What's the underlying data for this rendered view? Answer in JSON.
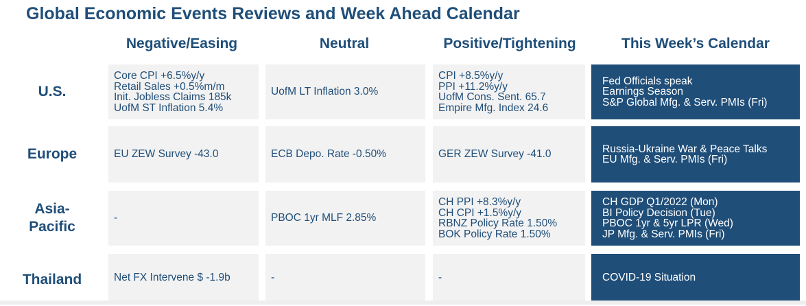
{
  "title": "Global Economic Events Reviews and Week Ahead Calendar",
  "columns": [
    "Negative/Easing",
    "Neutral",
    "Positive/Tightening",
    "This Week’s Calendar"
  ],
  "rows": [
    {
      "label": "U.S.",
      "negative": [
        "Core CPI +6.5%y/y",
        "Retail Sales +0.5%m/m",
        "Init. Jobless Claims 185k",
        "UofM ST Inflation 5.4%"
      ],
      "neutral": [
        "UofM LT Inflation 3.0%"
      ],
      "positive": [
        "CPI +8.5%y/y",
        "PPI +11.2%y/y",
        "UofM Cons. Sent. 65.7",
        "Empire Mfg. Index 24.6"
      ],
      "calendar": [
        "Fed Officials speak",
        "Earnings Season",
        "S&P Global Mfg. & Serv. PMIs (Fri)"
      ]
    },
    {
      "label": "Europe",
      "negative": [
        "EU ZEW Survey -43.0"
      ],
      "neutral": [
        "ECB Depo. Rate -0.50%"
      ],
      "positive": [
        "GER ZEW Survey -41.0"
      ],
      "calendar": [
        "Russia-Ukraine War & Peace Talks",
        "EU Mfg. & Serv. PMIs (Fri)"
      ]
    },
    {
      "label_lines": [
        "Asia-",
        "Pacific"
      ],
      "negative": [
        "-"
      ],
      "neutral": [
        "PBOC 1yr MLF 2.85%"
      ],
      "positive": [
        "CH PPI +8.3%y/y",
        "CH CPI +1.5%y/y",
        "RBNZ Policy Rate 1.50%",
        "BOK Policy Rate 1.50%"
      ],
      "calendar": [
        "CH GDP Q1/2022 (Mon)",
        "BI Policy Decision (Tue)",
        "PBOC 1yr & 5yr LPR (Wed)",
        "JP Mfg. & Serv. PMIs (Fri)"
      ]
    },
    {
      "label": "Thailand",
      "negative": [
        "Net FX Intervene $ -1.9b"
      ],
      "neutral": [
        "-"
      ],
      "positive": [
        "-"
      ],
      "calendar": [
        "COVID-19 Situation"
      ]
    }
  ]
}
